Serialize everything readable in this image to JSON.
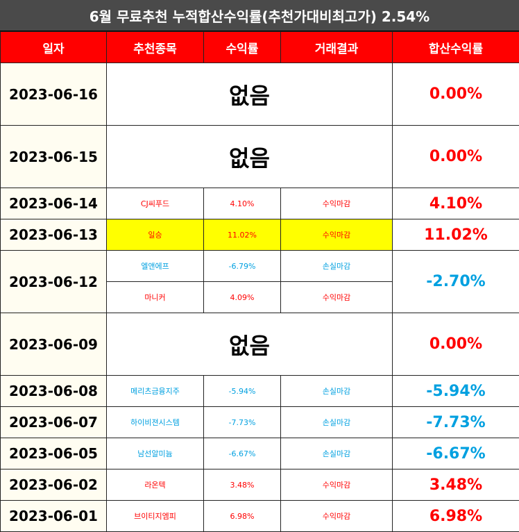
{
  "title": "6월 무료추천 누적합산수익률(추천가대비최고가) 2.54%",
  "headers": [
    "일자",
    "추천종목",
    "수익률",
    "거래결과",
    "합산수익률"
  ],
  "colors": {
    "profit": "#ff0000",
    "loss": "#00a0e0",
    "header_bg": "#ff0000",
    "title_bg": "#4a4a4a",
    "highlight": "#ffff00"
  },
  "rows": [
    {
      "date": "2023-06-16",
      "none_label": "없음",
      "total": "0.00%"
    },
    {
      "date": "2023-06-15",
      "none_label": "없음",
      "total": "0.00%"
    },
    {
      "date": "2023-06-14",
      "stock": "CJ씨푸드",
      "rate": "4.10%",
      "result": "수익마감",
      "total": "4.10%"
    },
    {
      "date": "2023-06-13",
      "stock": "일승",
      "rate": "11.02%",
      "result": "수익마감",
      "total": "11.02%"
    },
    {
      "date": "2023-06-12",
      "stock": "엘앤에프",
      "rate": "-6.79%",
      "result": "손실마감",
      "stock2": "마니커",
      "rate2": "4.09%",
      "result2": "수익마감",
      "total": "-2.70%"
    },
    {
      "date": "2023-06-09",
      "none_label": "없음",
      "total": "0.00%"
    },
    {
      "date": "2023-06-08",
      "stock": "메리츠금융지주",
      "rate": "-5.94%",
      "result": "손실마감",
      "total": "-5.94%"
    },
    {
      "date": "2023-06-07",
      "stock": "하이비젼시스템",
      "rate": "-7.73%",
      "result": "손실마감",
      "total": "-7.73%"
    },
    {
      "date": "2023-06-05",
      "stock": "남선알미늄",
      "rate": "-6.67%",
      "result": "손실마감",
      "total": "-6.67%"
    },
    {
      "date": "2023-06-02",
      "stock": "라온텍",
      "rate": "3.48%",
      "result": "수익마감",
      "total": "3.48%"
    },
    {
      "date": "2023-06-01",
      "stock": "브이티지엠피",
      "rate": "6.98%",
      "result": "수익마감",
      "total": "6.98%"
    }
  ]
}
